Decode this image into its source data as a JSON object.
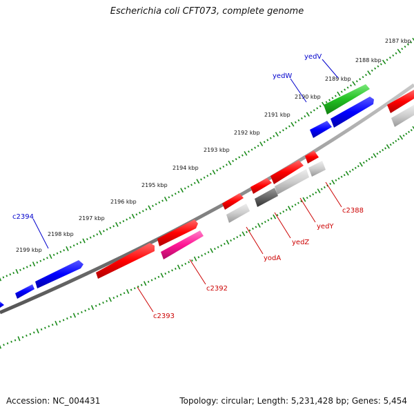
{
  "title": "Escherichia coli CFT073, complete genome",
  "footer": {
    "accession": "Accession: NC_004431",
    "summary": "Topology: circular; Length: 5,231,428 bp; Genes: 5,454"
  },
  "colors": {
    "backbone": "#888888",
    "tick": "#1a8a1a",
    "forward_label": "#0000cc",
    "reverse_label": "#cc0000"
  },
  "scale_labels": [
    "2187 kbp",
    "2188 kbp",
    "2189 kbp",
    "2190 kbp",
    "2191 kbp",
    "2192 kbp",
    "2193 kbp",
    "2194 kbp",
    "2195 kbp",
    "2196 kbp",
    "2197 kbp",
    "2198 kbp",
    "2199 kbp"
  ],
  "gene_labels": [
    "yedV",
    "yedW",
    "c2394",
    "c2388",
    "yedY",
    "yedZ",
    "yodA",
    "c2392",
    "c2393"
  ]
}
